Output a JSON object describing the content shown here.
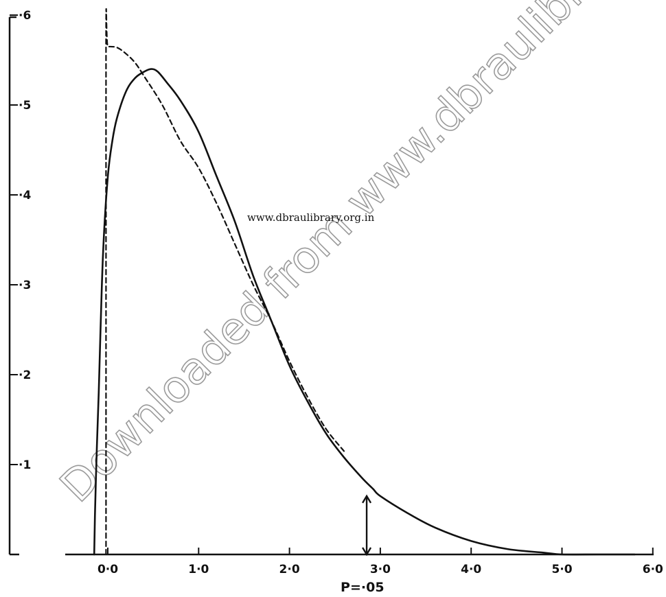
{
  "chart_data": {
    "type": "line",
    "title": "",
    "xlabel": "",
    "ylabel": "",
    "xlim": [
      -0.1,
      6.0
    ],
    "ylim": [
      0,
      0.6
    ],
    "x_ticks": [
      {
        "value": 0,
        "label": "0·0"
      },
      {
        "value": 1,
        "label": "1·0"
      },
      {
        "value": 2,
        "label": "2·0"
      },
      {
        "value": 3,
        "label": "3·0"
      },
      {
        "value": 4,
        "label": "4·0"
      },
      {
        "value": 5,
        "label": "5·0"
      },
      {
        "value": 6,
        "label": "6·0"
      }
    ],
    "y_ticks": [
      {
        "value": 0.1,
        "label": "·1"
      },
      {
        "value": 0.2,
        "label": "·2"
      },
      {
        "value": 0.3,
        "label": "·3"
      },
      {
        "value": 0.4,
        "label": "·4"
      },
      {
        "value": 0.5,
        "label": "·5"
      },
      {
        "value": 0.6,
        "label": "·6"
      }
    ],
    "grid": false,
    "legend": "none",
    "series": [
      {
        "style": "solid",
        "x": [
          -0.15,
          -0.14,
          -0.12,
          -0.1,
          -0.08,
          -0.05,
          0.0,
          0.05,
          0.1,
          0.2,
          0.3,
          0.4,
          0.48,
          0.55,
          0.65,
          0.8,
          1.0,
          1.2,
          1.4,
          1.6,
          1.8,
          2.0,
          2.2,
          2.4,
          2.6,
          2.8,
          2.92,
          3.0,
          3.3,
          3.6,
          4.0,
          4.4,
          4.8,
          5.0,
          5.4,
          5.8
        ],
        "y": [
          0.0,
          0.05,
          0.12,
          0.18,
          0.25,
          0.34,
          0.42,
          0.46,
          0.485,
          0.515,
          0.53,
          0.537,
          0.54,
          0.537,
          0.525,
          0.505,
          0.47,
          0.42,
          0.37,
          0.31,
          0.26,
          0.21,
          0.17,
          0.135,
          0.108,
          0.085,
          0.073,
          0.065,
          0.046,
          0.03,
          0.015,
          0.006,
          0.002,
          0.0,
          0.0,
          0.0
        ]
      },
      {
        "style": "dashed",
        "x": [
          -0.02,
          -0.02,
          0.0,
          0.1,
          0.2,
          0.3,
          0.4,
          0.6,
          0.8,
          1.0,
          1.2,
          1.4,
          1.6,
          1.8,
          2.0,
          2.2,
          2.4,
          2.6
        ],
        "y": [
          0.0,
          0.565,
          0.565,
          0.564,
          0.557,
          0.547,
          0.532,
          0.5,
          0.46,
          0.43,
          0.39,
          0.345,
          0.3,
          0.26,
          0.215,
          0.175,
          0.14,
          0.115
        ]
      }
    ],
    "annotations": [
      {
        "type": "arrow",
        "x": 2.85,
        "y_from": 0.0,
        "y_to": 0.065,
        "label": "P=·05"
      }
    ]
  },
  "watermark": {
    "diagonal_text": "Downloaded from www.dbraulibrary.org.in",
    "center_text": "www.dbraulibrary.org.in"
  }
}
